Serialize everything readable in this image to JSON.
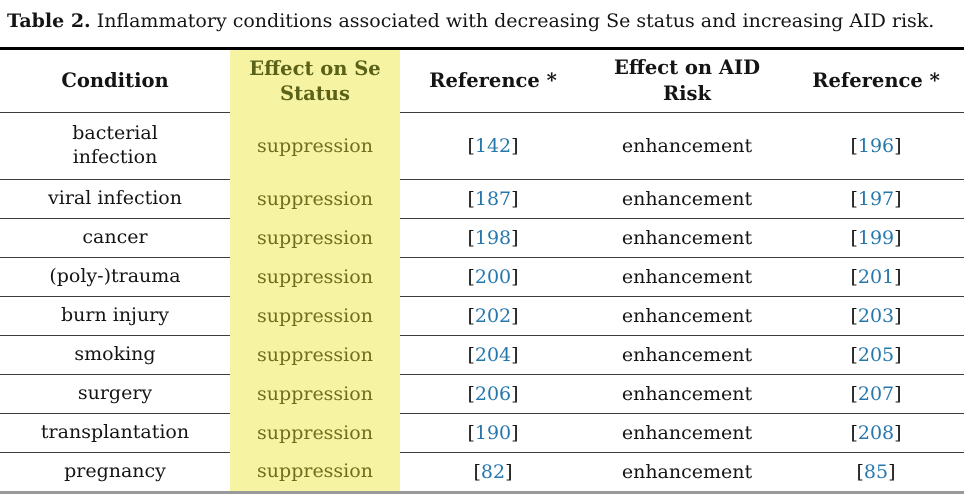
{
  "caption": {
    "label": "Table 2.",
    "text": "Inflammatory conditions associated with decreasing Se status and increasing AID risk."
  },
  "punctuation": {
    "open_bracket": "[",
    "close_bracket": "]"
  },
  "table": {
    "columns": [
      {
        "label": "Condition"
      },
      {
        "label": "Effect on Se Status"
      },
      {
        "label": "Reference *"
      },
      {
        "label": "Effect on AID Risk"
      },
      {
        "label": "Reference *"
      }
    ],
    "rows": [
      {
        "condition": "bacterial infection",
        "se_status": "suppression",
        "se_ref": "142",
        "aid_risk": "enhancement",
        "aid_ref": "196"
      },
      {
        "condition": "viral infection",
        "se_status": "suppression",
        "se_ref": "187",
        "aid_risk": "enhancement",
        "aid_ref": "197"
      },
      {
        "condition": "cancer",
        "se_status": "suppression",
        "se_ref": "198",
        "aid_risk": "enhancement",
        "aid_ref": "199"
      },
      {
        "condition": "(poly-)trauma",
        "se_status": "suppression",
        "se_ref": "200",
        "aid_risk": "enhancement",
        "aid_ref": "201"
      },
      {
        "condition": "burn injury",
        "se_status": "suppression",
        "se_ref": "202",
        "aid_risk": "enhancement",
        "aid_ref": "203"
      },
      {
        "condition": "smoking",
        "se_status": "suppression",
        "se_ref": "204",
        "aid_risk": "enhancement",
        "aid_ref": "205"
      },
      {
        "condition": "surgery",
        "se_status": "suppression",
        "se_ref": "206",
        "aid_risk": "enhancement",
        "aid_ref": "207"
      },
      {
        "condition": "transplantation",
        "se_status": "suppression",
        "se_ref": "190",
        "aid_risk": "enhancement",
        "aid_ref": "208"
      },
      {
        "condition": "pregnancy",
        "se_status": "suppression",
        "se_ref": "82",
        "aid_risk": "enhancement",
        "aid_ref": "85"
      }
    ]
  },
  "colors": {
    "highlight_yellow": "#F6F3A2",
    "header_highlight_text": "#5A6219",
    "suppression_text": "#6F6D20",
    "reference_link": "#2577AC"
  }
}
